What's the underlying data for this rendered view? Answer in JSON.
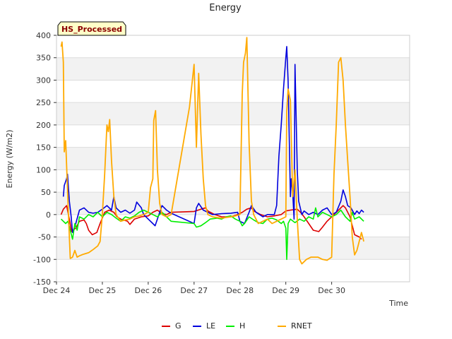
{
  "chart_data": {
    "type": "line",
    "title": "Energy",
    "badge": "HS_Processed",
    "xlabel": "Time",
    "ylabel": "Energy (W/m2)",
    "ylim": [
      -150,
      400
    ],
    "yticks": [
      -150,
      -100,
      -50,
      0,
      50,
      100,
      150,
      200,
      250,
      300,
      350,
      400
    ],
    "xlim": [
      0,
      7.7
    ],
    "xticks": [
      {
        "x": 0,
        "label": "Dec 24"
      },
      {
        "x": 1,
        "label": "Dec 25"
      },
      {
        "x": 2,
        "label": "Dec 26"
      },
      {
        "x": 3,
        "label": "Dec 27"
      },
      {
        "x": 4,
        "label": "Dec 28"
      },
      {
        "x": 5,
        "label": "Dec 29"
      },
      {
        "x": 6,
        "label": "Dec 30"
      }
    ],
    "grid": "horizontal bands",
    "legend_position": "bottom",
    "series": [
      {
        "name": "G",
        "color": "#dd0000",
        "points": [
          [
            0.1,
            0
          ],
          [
            0.15,
            12
          ],
          [
            0.22,
            20
          ],
          [
            0.28,
            -10
          ],
          [
            0.33,
            -38
          ],
          [
            0.42,
            -30
          ],
          [
            0.5,
            -15
          ],
          [
            0.6,
            -12
          ],
          [
            0.65,
            -20
          ],
          [
            0.7,
            -35
          ],
          [
            0.78,
            -45
          ],
          [
            0.88,
            -40
          ],
          [
            0.95,
            -20
          ],
          [
            1.05,
            5
          ],
          [
            1.15,
            10
          ],
          [
            1.25,
            5
          ],
          [
            1.32,
            -5
          ],
          [
            1.4,
            -10
          ],
          [
            1.55,
            -15
          ],
          [
            1.6,
            -22
          ],
          [
            1.7,
            -10
          ],
          [
            1.85,
            -5
          ],
          [
            2.0,
            -3
          ],
          [
            2.1,
            5
          ],
          [
            2.2,
            10
          ],
          [
            2.3,
            2
          ],
          [
            2.4,
            0
          ],
          [
            2.5,
            5
          ],
          [
            3.0,
            7
          ],
          [
            3.15,
            12
          ],
          [
            3.25,
            15
          ],
          [
            3.3,
            8
          ],
          [
            3.45,
            0
          ],
          [
            3.6,
            -5
          ],
          [
            3.8,
            -5
          ],
          [
            3.95,
            0
          ],
          [
            4.05,
            5
          ],
          [
            4.15,
            12
          ],
          [
            4.25,
            15
          ],
          [
            4.3,
            8
          ],
          [
            4.45,
            0
          ],
          [
            4.6,
            -5
          ],
          [
            4.75,
            -3
          ],
          [
            4.9,
            0
          ],
          [
            5.0,
            8
          ],
          [
            5.1,
            10
          ],
          [
            5.25,
            12
          ],
          [
            5.32,
            5
          ],
          [
            5.4,
            -5
          ],
          [
            5.5,
            -20
          ],
          [
            5.6,
            -35
          ],
          [
            5.72,
            -38
          ],
          [
            5.8,
            -28
          ],
          [
            5.9,
            -15
          ],
          [
            6.0,
            -5
          ],
          [
            6.15,
            10
          ],
          [
            6.25,
            20
          ],
          [
            6.3,
            15
          ],
          [
            6.4,
            -5
          ],
          [
            6.5,
            -45
          ],
          [
            6.6,
            -50
          ],
          [
            6.65,
            -55
          ]
        ]
      },
      {
        "name": "LE",
        "color": "#0000dd",
        "points": [
          [
            0.15,
            40
          ],
          [
            0.17,
            65
          ],
          [
            0.22,
            80
          ],
          [
            0.24,
            90
          ],
          [
            0.28,
            30
          ],
          [
            0.32,
            -5
          ],
          [
            0.35,
            -40
          ],
          [
            0.42,
            -20
          ],
          [
            0.5,
            10
          ],
          [
            0.6,
            15
          ],
          [
            0.7,
            5
          ],
          [
            0.8,
            3
          ],
          [
            0.9,
            5
          ],
          [
            1.0,
            12
          ],
          [
            1.1,
            20
          ],
          [
            1.2,
            10
          ],
          [
            1.25,
            40
          ],
          [
            1.3,
            15
          ],
          [
            1.4,
            5
          ],
          [
            1.5,
            10
          ],
          [
            1.6,
            3
          ],
          [
            1.7,
            10
          ],
          [
            1.75,
            28
          ],
          [
            1.85,
            15
          ],
          [
            1.9,
            0
          ],
          [
            2.0,
            -10
          ],
          [
            2.1,
            -20
          ],
          [
            2.15,
            -25
          ],
          [
            2.3,
            20
          ],
          [
            2.4,
            10
          ],
          [
            2.5,
            3
          ],
          [
            3.0,
            -20
          ],
          [
            3.05,
            15
          ],
          [
            3.1,
            25
          ],
          [
            3.2,
            10
          ],
          [
            3.3,
            5
          ],
          [
            3.4,
            0
          ],
          [
            3.6,
            2
          ],
          [
            3.8,
            3
          ],
          [
            3.95,
            5
          ],
          [
            4.0,
            -15
          ],
          [
            4.1,
            -20
          ],
          [
            4.2,
            5
          ],
          [
            4.25,
            20
          ],
          [
            4.35,
            5
          ],
          [
            4.5,
            -5
          ],
          [
            4.6,
            0
          ],
          [
            4.7,
            0
          ],
          [
            4.75,
            0
          ],
          [
            4.8,
            20
          ],
          [
            4.85,
            130
          ],
          [
            4.9,
            200
          ],
          [
            4.95,
            280
          ],
          [
            5.0,
            350
          ],
          [
            5.02,
            375
          ],
          [
            5.05,
            300
          ],
          [
            5.1,
            40
          ],
          [
            5.12,
            80
          ],
          [
            5.15,
            50
          ],
          [
            5.18,
            -10
          ],
          [
            5.2,
            335
          ],
          [
            5.25,
            100
          ],
          [
            5.28,
            30
          ],
          [
            5.35,
            0
          ],
          [
            5.4,
            8
          ],
          [
            5.5,
            0
          ],
          [
            5.6,
            5
          ],
          [
            5.7,
            0
          ],
          [
            5.8,
            10
          ],
          [
            5.9,
            15
          ],
          [
            6.0,
            0
          ],
          [
            6.1,
            5
          ],
          [
            6.2,
            30
          ],
          [
            6.25,
            55
          ],
          [
            6.3,
            40
          ],
          [
            6.35,
            20
          ],
          [
            6.42,
            15
          ],
          [
            6.5,
            0
          ],
          [
            6.55,
            8
          ],
          [
            6.6,
            2
          ],
          [
            6.65,
            10
          ],
          [
            6.7,
            5
          ]
        ]
      },
      {
        "name": "H",
        "color": "#00ee00",
        "points": [
          [
            0.1,
            -10
          ],
          [
            0.15,
            -15
          ],
          [
            0.2,
            -20
          ],
          [
            0.25,
            -15
          ],
          [
            0.3,
            -35
          ],
          [
            0.35,
            -55
          ],
          [
            0.4,
            -20
          ],
          [
            0.45,
            -35
          ],
          [
            0.5,
            -5
          ],
          [
            0.6,
            -10
          ],
          [
            0.7,
            0
          ],
          [
            0.8,
            -5
          ],
          [
            0.9,
            5
          ],
          [
            1.0,
            -5
          ],
          [
            1.1,
            5
          ],
          [
            1.2,
            0
          ],
          [
            1.3,
            -8
          ],
          [
            1.4,
            -15
          ],
          [
            1.5,
            -5
          ],
          [
            1.6,
            -8
          ],
          [
            1.7,
            -3
          ],
          [
            1.8,
            5
          ],
          [
            1.9,
            10
          ],
          [
            2.0,
            5
          ],
          [
            2.1,
            0
          ],
          [
            2.2,
            -5
          ],
          [
            2.3,
            5
          ],
          [
            2.4,
            -5
          ],
          [
            2.5,
            -15
          ],
          [
            3.0,
            -20
          ],
          [
            3.05,
            -28
          ],
          [
            3.15,
            -25
          ],
          [
            3.25,
            -18
          ],
          [
            3.35,
            -10
          ],
          [
            3.5,
            -8
          ],
          [
            3.6,
            -10
          ],
          [
            3.7,
            -5
          ],
          [
            3.8,
            -3
          ],
          [
            3.9,
            -10
          ],
          [
            4.0,
            -15
          ],
          [
            4.05,
            -25
          ],
          [
            4.1,
            -20
          ],
          [
            4.2,
            -5
          ],
          [
            4.3,
            -12
          ],
          [
            4.4,
            -18
          ],
          [
            4.5,
            -20
          ],
          [
            4.6,
            -10
          ],
          [
            4.7,
            -8
          ],
          [
            4.8,
            -12
          ],
          [
            4.9,
            -20
          ],
          [
            4.95,
            -15
          ],
          [
            5.0,
            -30
          ],
          [
            5.02,
            -100
          ],
          [
            5.05,
            -20
          ],
          [
            5.1,
            -10
          ],
          [
            5.2,
            -18
          ],
          [
            5.3,
            -10
          ],
          [
            5.4,
            -15
          ],
          [
            5.5,
            -5
          ],
          [
            5.6,
            -10
          ],
          [
            5.65,
            15
          ],
          [
            5.7,
            -5
          ],
          [
            5.8,
            5
          ],
          [
            5.9,
            0
          ],
          [
            6.0,
            -5
          ],
          [
            6.1,
            0
          ],
          [
            6.2,
            10
          ],
          [
            6.3,
            -5
          ],
          [
            6.4,
            -15
          ],
          [
            6.45,
            5
          ],
          [
            6.5,
            -10
          ],
          [
            6.6,
            -5
          ],
          [
            6.7,
            -15
          ]
        ]
      },
      {
        "name": "RNET",
        "color": "#ffaa00",
        "points": [
          [
            0.1,
            375
          ],
          [
            0.12,
            385
          ],
          [
            0.15,
            340
          ],
          [
            0.17,
            140
          ],
          [
            0.2,
            165
          ],
          [
            0.25,
            30
          ],
          [
            0.28,
            -50
          ],
          [
            0.3,
            -98
          ],
          [
            0.35,
            -95
          ],
          [
            0.4,
            -80
          ],
          [
            0.45,
            -95
          ],
          [
            0.5,
            -92
          ],
          [
            0.55,
            -90
          ],
          [
            0.6,
            -88
          ],
          [
            0.7,
            -85
          ],
          [
            0.8,
            -78
          ],
          [
            0.9,
            -70
          ],
          [
            0.95,
            -60
          ],
          [
            1.0,
            0
          ],
          [
            1.05,
            90
          ],
          [
            1.1,
            200
          ],
          [
            1.13,
            185
          ],
          [
            1.16,
            212
          ],
          [
            1.2,
            120
          ],
          [
            1.25,
            40
          ],
          [
            1.3,
            0
          ],
          [
            1.4,
            -15
          ],
          [
            1.5,
            -12
          ],
          [
            1.6,
            -10
          ],
          [
            1.7,
            -5
          ],
          [
            1.8,
            -3
          ],
          [
            1.9,
            0
          ],
          [
            2.0,
            5
          ],
          [
            2.05,
            60
          ],
          [
            2.1,
            80
          ],
          [
            2.12,
            210
          ],
          [
            2.16,
            232
          ],
          [
            2.2,
            100
          ],
          [
            2.25,
            25
          ],
          [
            2.3,
            0
          ],
          [
            2.4,
            -5
          ],
          [
            2.5,
            0
          ],
          [
            2.9,
            240
          ],
          [
            3.0,
            335
          ],
          [
            3.05,
            150
          ],
          [
            3.1,
            315
          ],
          [
            3.15,
            180
          ],
          [
            3.2,
            80
          ],
          [
            3.25,
            20
          ],
          [
            3.3,
            0
          ],
          [
            3.4,
            -5
          ],
          [
            3.6,
            -8
          ],
          [
            3.8,
            -5
          ],
          [
            3.9,
            -3
          ],
          [
            4.0,
            0
          ],
          [
            4.05,
            270
          ],
          [
            4.08,
            340
          ],
          [
            4.12,
            360
          ],
          [
            4.15,
            395
          ],
          [
            4.2,
            160
          ],
          [
            4.25,
            30
          ],
          [
            4.3,
            0
          ],
          [
            4.4,
            -20
          ],
          [
            4.5,
            -15
          ],
          [
            4.6,
            -10
          ],
          [
            4.7,
            -20
          ],
          [
            4.8,
            -15
          ],
          [
            4.9,
            -10
          ],
          [
            5.0,
            -5
          ],
          [
            5.02,
            230
          ],
          [
            5.05,
            280
          ],
          [
            5.1,
            255
          ],
          [
            5.15,
            40
          ],
          [
            5.2,
            100
          ],
          [
            5.25,
            -10
          ],
          [
            5.3,
            -100
          ],
          [
            5.35,
            -110
          ],
          [
            5.45,
            -100
          ],
          [
            5.55,
            -95
          ],
          [
            5.7,
            -95
          ],
          [
            5.8,
            -100
          ],
          [
            5.9,
            -102
          ],
          [
            6.0,
            -95
          ],
          [
            6.05,
            90
          ],
          [
            6.1,
            200
          ],
          [
            6.15,
            340
          ],
          [
            6.2,
            350
          ],
          [
            6.25,
            300
          ],
          [
            6.3,
            200
          ],
          [
            6.35,
            120
          ],
          [
            6.4,
            40
          ],
          [
            6.45,
            -50
          ],
          [
            6.5,
            -90
          ],
          [
            6.55,
            -80
          ],
          [
            6.6,
            -60
          ],
          [
            6.65,
            -40
          ],
          [
            6.7,
            -60
          ]
        ]
      }
    ]
  }
}
